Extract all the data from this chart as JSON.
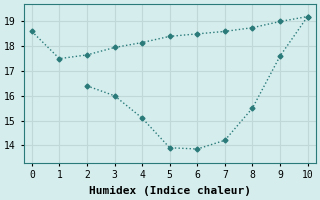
{
  "xlabel": "Humidex (Indice chaleur)",
  "background_color": "#d5eded",
  "grid_color": "#c0d8d8",
  "line_color": "#2a7a7a",
  "line1_x": [
    0,
    1,
    2,
    3,
    4,
    5,
    6,
    7,
    8,
    9,
    10
  ],
  "line1_y": [
    18.6,
    17.5,
    17.65,
    17.95,
    18.15,
    18.4,
    18.5,
    18.6,
    18.75,
    19.0,
    19.2
  ],
  "line2_x": [
    2,
    3,
    4,
    5,
    6,
    7,
    8,
    9,
    10
  ],
  "line2_y": [
    16.4,
    16.0,
    15.1,
    13.9,
    13.85,
    14.2,
    15.5,
    17.6,
    19.2
  ],
  "xlim": [
    -0.3,
    10.3
  ],
  "ylim": [
    13.3,
    19.7
  ],
  "yticks": [
    14,
    15,
    16,
    17,
    18,
    19
  ],
  "xticks": [
    0,
    1,
    2,
    3,
    4,
    5,
    6,
    7,
    8,
    9,
    10
  ],
  "marker": "D",
  "marker_size": 2.5,
  "line_width": 1.0,
  "xlabel_fontsize": 8,
  "tick_fontsize": 7
}
